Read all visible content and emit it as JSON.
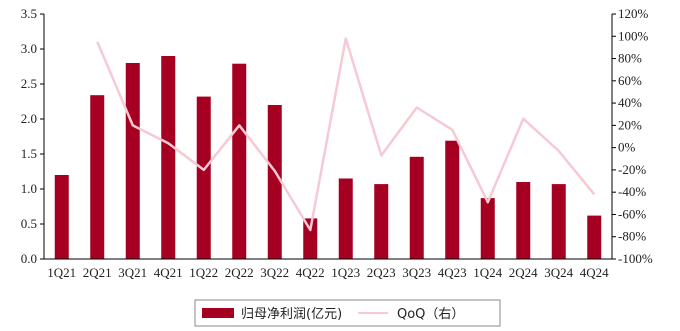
{
  "chart_data": {
    "type": "bar",
    "categories": [
      "1Q21",
      "2Q21",
      "3Q21",
      "4Q21",
      "1Q22",
      "2Q22",
      "3Q22",
      "4Q22",
      "1Q23",
      "2Q23",
      "3Q23",
      "4Q23",
      "1Q24",
      "2Q24",
      "3Q24",
      "4Q24"
    ],
    "x_tick_labels": [
      "1Q21",
      "2Q21",
      "3Q21",
      "4Q21",
      "1Q22",
      "2Q22",
      "3Q22",
      "4Q22",
      "1Q23",
      "2Q23",
      "3Q23",
      "4Q23",
      "1Q24",
      "2Q24",
      "3Q24",
      "4Q24"
    ],
    "series": [
      {
        "name": "归母净利润(亿元)",
        "type": "bar",
        "axis": "left",
        "color": "#a50021",
        "values": [
          1.2,
          2.34,
          2.8,
          2.9,
          2.32,
          2.79,
          2.2,
          0.58,
          1.15,
          1.07,
          1.46,
          1.69,
          0.87,
          1.1,
          1.07,
          0.62
        ]
      },
      {
        "name": "QoQ（右）",
        "type": "line",
        "axis": "right",
        "color": "#f6c9d3",
        "values": [
          null,
          95,
          20,
          4,
          -20,
          20,
          -21,
          -74,
          98,
          -7,
          36,
          16,
          -49,
          26,
          -3,
          -42
        ]
      }
    ],
    "y_left": {
      "min": 0,
      "max": 3.5,
      "ticks": [
        "0.0",
        "0.5",
        "1.0",
        "1.5",
        "2.0",
        "2.5",
        "3.0",
        "3.5"
      ]
    },
    "y_right": {
      "min": -100,
      "max": 120,
      "ticks": [
        "-100%",
        "-80%",
        "-60%",
        "-40%",
        "-20%",
        "0%",
        "20%",
        "40%",
        "60%",
        "80%",
        "100%",
        "120%"
      ]
    },
    "legend": {
      "placement": "bottom"
    },
    "grid": false
  }
}
